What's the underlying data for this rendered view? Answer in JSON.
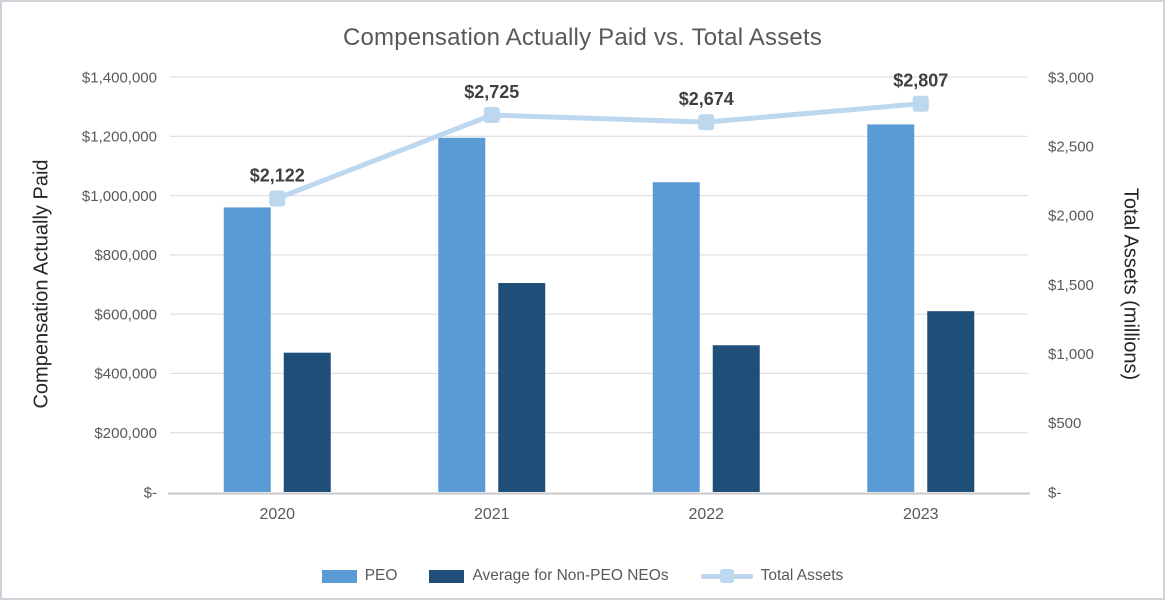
{
  "chart_data": {
    "type": "combo",
    "title": "Compensation Actually Paid vs. Total Assets",
    "categories": [
      "2020",
      "2021",
      "2022",
      "2023"
    ],
    "series": [
      {
        "name": "PEO",
        "type": "bar",
        "axis": "left",
        "color": "#5b9bd5",
        "values": [
          960000,
          1195000,
          1045000,
          1240000
        ]
      },
      {
        "name": "Average for Non-PEO NEOs",
        "type": "bar",
        "axis": "left",
        "color": "#1f4e79",
        "values": [
          470000,
          705000,
          495000,
          610000
        ]
      },
      {
        "name": "Total Assets",
        "type": "line",
        "axis": "right",
        "color": "#bdd7ee",
        "values": [
          2122,
          2725,
          2674,
          2807
        ],
        "labels": [
          "$2,122",
          "$2,725",
          "$2,674",
          "$2,807"
        ]
      }
    ],
    "left_axis": {
      "title": "Compensation Actually Paid",
      "min": 0,
      "max": 1400000,
      "step": 200000,
      "tick_labels": [
        "$1,400,000",
        "$1,200,000",
        "$1,000,000",
        "$800,000",
        "$600,000",
        "$400,000",
        "$200,000",
        "$-"
      ]
    },
    "right_axis": {
      "title": "Total Assets (millions)",
      "min": 0,
      "max": 3000,
      "step": 500,
      "tick_labels": [
        "$3,000",
        "$2,500",
        "$2,000",
        "$1,500",
        "$1,000",
        "$500",
        "$-"
      ]
    },
    "legend": {
      "position": "bottom"
    },
    "grid": true,
    "colors": {
      "gridline": "#d9d9d9",
      "axis_line": "#c8c8c8",
      "tick_text": "#595959",
      "title_text": "#595959",
      "axis_title_text": "#262626",
      "data_label_text": "#404040",
      "border": "#cfd4da"
    }
  }
}
